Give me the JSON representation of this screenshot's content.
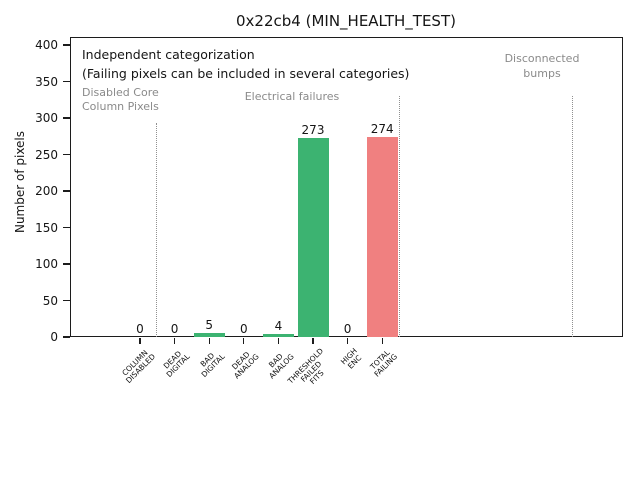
{
  "title": "0x22cb4 (MIN_HEALTH_TEST)",
  "chart_data": {
    "type": "bar",
    "categories": [
      "COLUMN\nDISABLED",
      "DEAD\nDIGITAL",
      "BAD\nDIGITAL",
      "DEAD\nANALOG",
      "BAD\nANALOG",
      "THRESHOLD\nFAILED\nFITS",
      "HIGH\nENC",
      "TOTAL\nFAILING"
    ],
    "values": [
      0,
      0,
      5,
      0,
      4,
      273,
      0,
      274
    ],
    "bar_colors": [
      "#3cb371",
      "#3cb371",
      "#3cb371",
      "#3cb371",
      "#3cb371",
      "#3cb371",
      "#3cb371",
      "#f08080"
    ],
    "value_labels": [
      "0",
      "0",
      "5",
      "0",
      "4",
      "273",
      "0",
      "274"
    ],
    "title": "0x22cb4 (MIN_HEALTH_TEST)",
    "xlabel": "",
    "ylabel": "Number of pixels",
    "ylim": [
      0,
      411
    ],
    "yticks": [
      0,
      50,
      100,
      150,
      200,
      250,
      300,
      350,
      400
    ],
    "grid": false,
    "legend": null,
    "separators": [
      {
        "x_slot": 0.5,
        "top_value": 293
      },
      {
        "x_slot": 7.5,
        "top_value": 330
      },
      {
        "x_slot": 12.5,
        "top_value": 330
      }
    ],
    "annotations": {
      "independent_line1": "Independent categorization",
      "independent_line2": "(Failing pixels can be included in several categories)",
      "disabled_core": "Disabled Core\nColumn Pixels",
      "electrical": "Electrical failures",
      "disconnected": "Disconnected\nbumps"
    },
    "colors": {
      "pass_bar_green": "#3cb371",
      "total_bar_red": "#f08080",
      "annotation_gray": "#8a8a8a"
    }
  }
}
